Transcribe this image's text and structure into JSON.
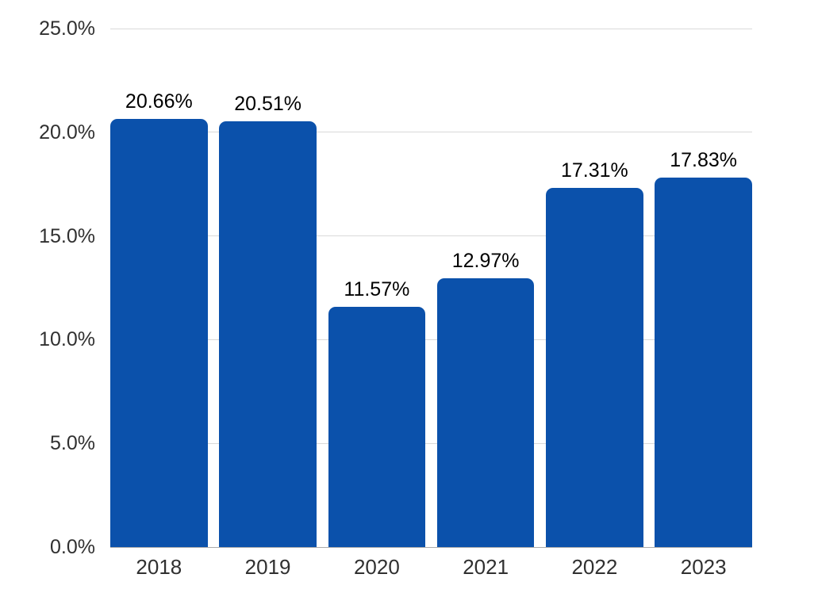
{
  "chart_data": {
    "type": "bar",
    "title": "",
    "xlabel": "",
    "ylabel": "",
    "categories": [
      "2018",
      "2019",
      "2020",
      "2021",
      "2022",
      "2023"
    ],
    "values": [
      20.66,
      20.51,
      11.57,
      12.97,
      17.31,
      17.83
    ],
    "data_labels": [
      "20.66%",
      "20.51%",
      "11.57%",
      "12.97%",
      "17.31%",
      "17.83%"
    ],
    "ylim": [
      0,
      25
    ],
    "y_ticks": [
      {
        "label": "0.0%",
        "value": 0
      },
      {
        "label": "5.0%",
        "value": 5
      },
      {
        "label": "10.0%",
        "value": 10
      },
      {
        "label": "15.0%",
        "value": 15
      },
      {
        "label": "20.0%",
        "value": 20
      },
      {
        "label": "25.0%",
        "value": 25
      }
    ],
    "grid": true,
    "legend": false,
    "colors": {
      "bar": "#0B51AB",
      "gridline": "#D9D9D9",
      "baseline": "#ABABAB",
      "axis_text": "#303030",
      "data_label_text": "#000000",
      "background": "#FFFFFF"
    }
  }
}
